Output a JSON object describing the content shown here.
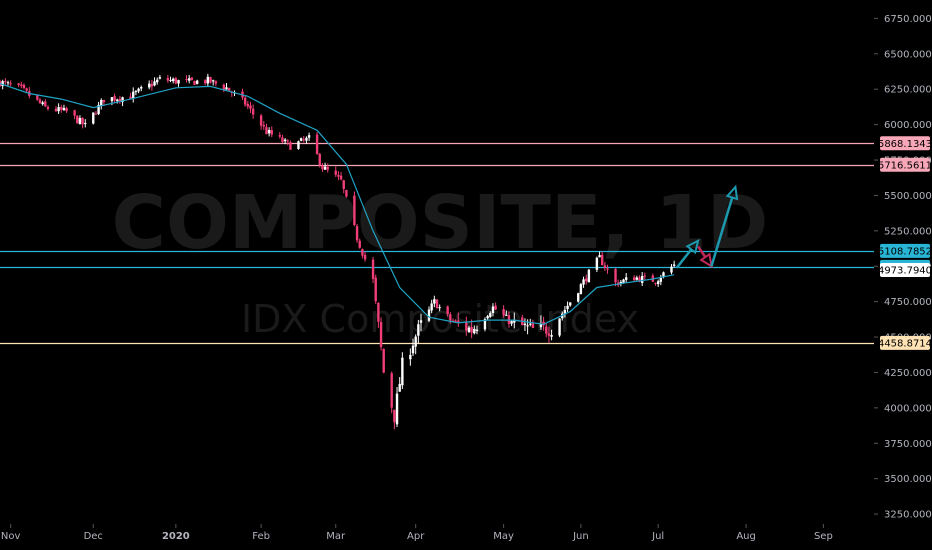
{
  "watermark": {
    "symbol": "COMPOSITE, 1D",
    "description": "IDX Composite Index"
  },
  "colors": {
    "background": "#000000",
    "up": "#ffffff",
    "down": "#f23e77",
    "ma": "#1fa3c4",
    "axis_text": "#b2b5be",
    "resistance": "#f7a7b8",
    "support_blue": "#29b6d6",
    "support_cream": "#ffe2b3",
    "arrow_up": "#1c9ab0",
    "arrow_down": "#c0285a"
  },
  "chart_data": {
    "type": "candlestick",
    "y_ticks": [
      "6750.0000",
      "6500.0000",
      "6250.0000",
      "6000.0000",
      "5750.0000",
      "5500.0000",
      "5250.0000",
      "5000.0000",
      "4750.0000",
      "4500.0000",
      "4250.0000",
      "4000.0000",
      "3750.0000",
      "3500.0000",
      "3250.0000"
    ],
    "y_tick_values": [
      6750,
      6500,
      6250,
      6000,
      5750,
      5500,
      5250,
      5000,
      4750,
      4500,
      4250,
      4000,
      3750,
      3500,
      3250
    ],
    "ylim": [
      3180,
      6880
    ],
    "x_ticks": [
      {
        "label": "Nov",
        "bold": false,
        "date": "2019-11-01"
      },
      {
        "label": "Dec",
        "bold": false,
        "date": "2019-12-02"
      },
      {
        "label": "2020",
        "bold": true,
        "date": "2020-01-02"
      },
      {
        "label": "Feb",
        "bold": false,
        "date": "2020-02-03"
      },
      {
        "label": "Mar",
        "bold": false,
        "date": "2020-03-02"
      },
      {
        "label": "Apr",
        "bold": false,
        "date": "2020-04-01"
      },
      {
        "label": "May",
        "bold": false,
        "date": "2020-05-04"
      },
      {
        "label": "Jun",
        "bold": false,
        "date": "2020-06-02"
      },
      {
        "label": "Jul",
        "bold": false,
        "date": "2020-07-01"
      },
      {
        "label": "Aug",
        "bold": false,
        "date": "2020-08-03"
      },
      {
        "label": "Sep",
        "bold": false,
        "date": "2020-09-01"
      }
    ],
    "xlim": [
      "2019-10-28",
      "2020-09-20"
    ],
    "horizontal_levels": [
      {
        "value": 5868.1343,
        "label": "5868.1343",
        "role": "resistance"
      },
      {
        "value": 5716.5611,
        "label": "5716.5611",
        "role": "resistance"
      },
      {
        "value": 5108.7852,
        "label": "5108.7852",
        "role": "support_blue"
      },
      {
        "value": 4995.2516,
        "label": "4995.2516",
        "role": "support_blue"
      },
      {
        "value": 4973.794,
        "label": "4973.7940",
        "role": "last_price"
      },
      {
        "value": 4458.8714,
        "label": "4458.8714",
        "role": "support_cream"
      }
    ],
    "moving_average_anchors": [
      [
        "2019-10-28",
        6290
      ],
      [
        "2019-11-08",
        6220
      ],
      [
        "2019-11-20",
        6180
      ],
      [
        "2019-12-02",
        6120
      ],
      [
        "2019-12-16",
        6180
      ],
      [
        "2020-01-02",
        6260
      ],
      [
        "2020-01-15",
        6270
      ],
      [
        "2020-01-29",
        6200
      ],
      [
        "2020-02-10",
        6080
      ],
      [
        "2020-02-24",
        5960
      ],
      [
        "2020-03-06",
        5720
      ],
      [
        "2020-03-16",
        5250
      ],
      [
        "2020-03-26",
        4850
      ],
      [
        "2020-04-06",
        4640
      ],
      [
        "2020-04-17",
        4600
      ],
      [
        "2020-04-28",
        4620
      ],
      [
        "2020-05-08",
        4620
      ],
      [
        "2020-05-19",
        4590
      ],
      [
        "2020-05-29",
        4680
      ],
      [
        "2020-06-08",
        4850
      ],
      [
        "2020-06-18",
        4880
      ],
      [
        "2020-06-29",
        4910
      ],
      [
        "2020-07-07",
        4940
      ]
    ],
    "close_anchors": [
      [
        "2019-10-28",
        6300
      ],
      [
        "2019-11-05",
        6250
      ],
      [
        "2019-11-14",
        6120
      ],
      [
        "2019-11-22",
        6090
      ],
      [
        "2019-11-29",
        5990
      ],
      [
        "2019-12-06",
        6180
      ],
      [
        "2019-12-16",
        6200
      ],
      [
        "2019-12-27",
        6320
      ],
      [
        "2020-01-06",
        6300
      ],
      [
        "2020-01-14",
        6310
      ],
      [
        "2020-01-21",
        6260
      ],
      [
        "2020-01-28",
        6150
      ],
      [
        "2020-02-05",
        5950
      ],
      [
        "2020-02-14",
        5850
      ],
      [
        "2020-02-21",
        5900
      ],
      [
        "2020-02-26",
        5700
      ],
      [
        "2020-03-04",
        5600
      ],
      [
        "2020-03-10",
        5200
      ],
      [
        "2020-03-16",
        4900
      ],
      [
        "2020-03-20",
        4250
      ],
      [
        "2020-03-24",
        3940
      ],
      [
        "2020-03-27",
        4300
      ],
      [
        "2020-04-02",
        4550
      ],
      [
        "2020-04-08",
        4750
      ],
      [
        "2020-04-14",
        4620
      ],
      [
        "2020-04-22",
        4550
      ],
      [
        "2020-04-30",
        4710
      ],
      [
        "2020-05-07",
        4600
      ],
      [
        "2020-05-15",
        4550
      ],
      [
        "2020-05-22",
        4560
      ],
      [
        "2020-05-29",
        4750
      ],
      [
        "2020-06-05",
        4950
      ],
      [
        "2020-06-09",
        5060
      ],
      [
        "2020-06-15",
        4880
      ],
      [
        "2020-06-22",
        4920
      ],
      [
        "2020-06-30",
        4900
      ],
      [
        "2020-07-07",
        5010
      ]
    ],
    "projection_arrows": [
      {
        "from": [
          "2020-07-08",
          4990
        ],
        "to": [
          "2020-07-16",
          5180
        ],
        "direction": "up"
      },
      {
        "from": [
          "2020-07-16",
          5140
        ],
        "to": [
          "2020-07-21",
          5000
        ],
        "direction": "down"
      },
      {
        "from": [
          "2020-07-21",
          5000
        ],
        "to": [
          "2020-07-30",
          5560
        ],
        "direction": "up"
      }
    ]
  }
}
